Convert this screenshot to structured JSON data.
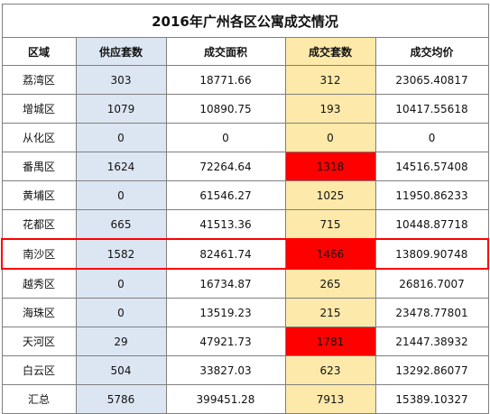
{
  "title": "2016年广州各区公寓成交情况",
  "headers": [
    "区域",
    "供应套数",
    "成交面积",
    "成交套数",
    "成交均价"
  ],
  "rows": [
    {
      "district": "荔湾区",
      "supply": "303",
      "area": "18771.66",
      "deals": "312",
      "price": "23065.40817",
      "hot": false
    },
    {
      "district": "增城区",
      "supply": "1079",
      "area": "10890.75",
      "deals": "193",
      "price": "10417.55618",
      "hot": false
    },
    {
      "district": "从化区",
      "supply": "0",
      "area": "0",
      "deals": "0",
      "price": "0",
      "hot": false
    },
    {
      "district": "番禺区",
      "supply": "1624",
      "area": "72264.64",
      "deals": "1318",
      "price": "14516.57408",
      "hot": true
    },
    {
      "district": "黄埔区",
      "supply": "0",
      "area": "61546.27",
      "deals": "1025",
      "price": "11950.86233",
      "hot": false
    },
    {
      "district": "花都区",
      "supply": "665",
      "area": "41513.36",
      "deals": "715",
      "price": "10448.87718",
      "hot": false
    },
    {
      "district": "南沙区",
      "supply": "1582",
      "area": "82461.74",
      "deals": "1466",
      "price": "13809.90748",
      "hot": true,
      "highlight": true
    },
    {
      "district": "越秀区",
      "supply": "0",
      "area": "16734.87",
      "deals": "265",
      "price": "26816.7007",
      "hot": false
    },
    {
      "district": "海珠区",
      "supply": "0",
      "area": "13519.23",
      "deals": "215",
      "price": "23478.77801",
      "hot": false
    },
    {
      "district": "天河区",
      "supply": "29",
      "area": "47921.73",
      "deals": "1781",
      "price": "21447.38932",
      "hot": true
    },
    {
      "district": "白云区",
      "supply": "504",
      "area": "33827.03",
      "deals": "623",
      "price": "13292.86077",
      "hot": false
    },
    {
      "district": "汇总",
      "supply": "5786",
      "area": "399451.28",
      "deals": "7913",
      "price": "15389.10327",
      "hot": false
    }
  ],
  "colors": {
    "supply_bg": "#dce6f2",
    "deals_bg": "#fde9a9",
    "hot_bg": "#ff0000",
    "highlight_border": "#ff0000"
  }
}
